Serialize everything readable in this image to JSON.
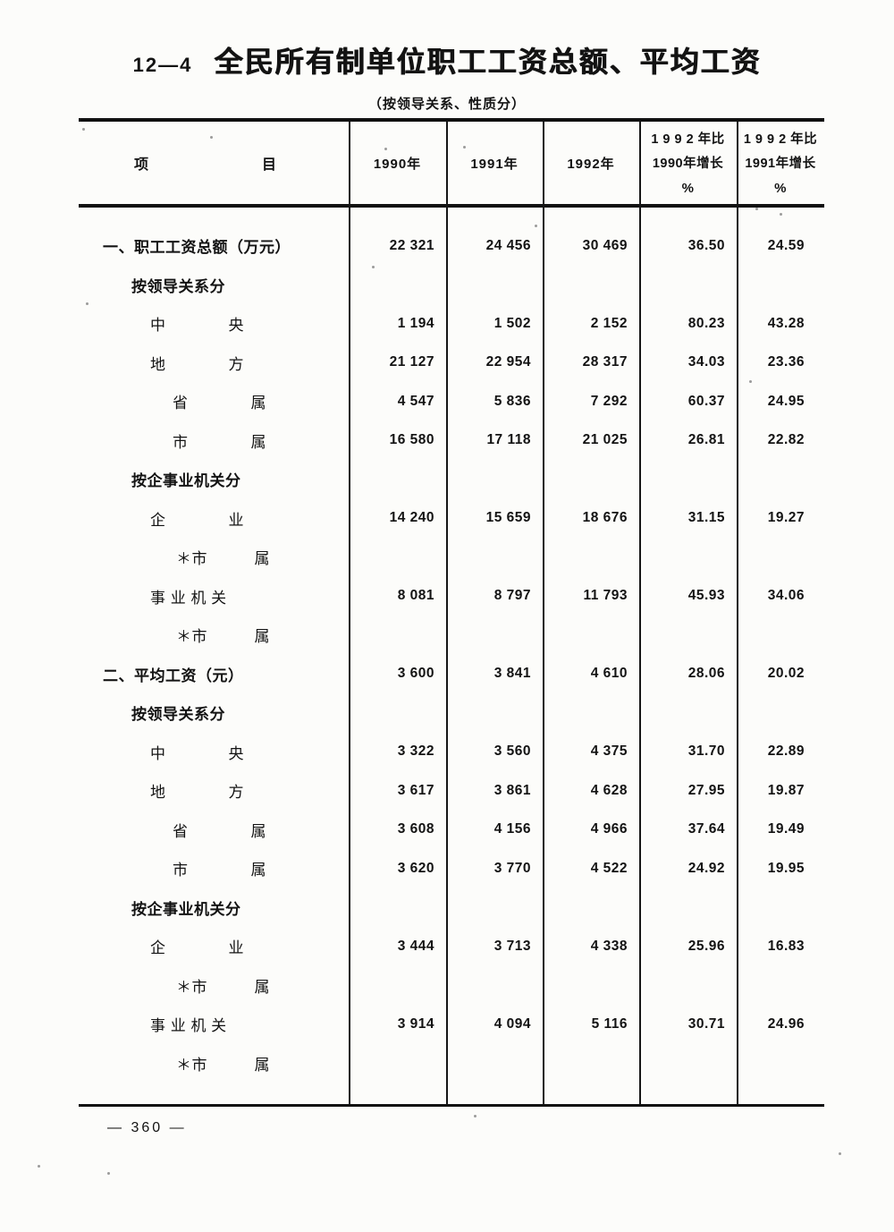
{
  "page": {
    "table_number": "12—4",
    "title": "全民所有制单位职工工资总额、平均工资",
    "subtitle": "（按领导关系、性质分）",
    "page_number": "— 360 —"
  },
  "table": {
    "header": {
      "item_left": "项",
      "item_right": "目",
      "year_cols": [
        "1990年",
        "1991年",
        "1992年"
      ],
      "growth_cols": [
        {
          "line1": "1 9 9 2 年比",
          "line2": "1990年增长",
          "line3": "%"
        },
        {
          "line1": "1 9 9 2 年比",
          "line2": "1991年增长",
          "line3": "%"
        }
      ]
    },
    "rows": [
      {
        "label": "一、职工工资总额（万元）",
        "indent": 1,
        "bold": true,
        "values": [
          "22 321",
          "24 456",
          "30 469",
          "36.50",
          "24.59"
        ]
      },
      {
        "label": "按领导关系分",
        "indent": 2,
        "bold": true,
        "values": [
          "",
          "",
          "",
          "",
          ""
        ]
      },
      {
        "label": "中　　　　央",
        "indent": 3,
        "bold": false,
        "values": [
          "1 194",
          "1 502",
          "2 152",
          "80.23",
          "43.28"
        ]
      },
      {
        "label": "地　　　　方",
        "indent": 3,
        "bold": false,
        "values": [
          "21 127",
          "22 954",
          "28 317",
          "34.03",
          "23.36"
        ]
      },
      {
        "label": "省　　　　属",
        "indent": 4,
        "bold": false,
        "values": [
          "4 547",
          "5 836",
          "7 292",
          "60.37",
          "24.95"
        ]
      },
      {
        "label": "市　　　　属",
        "indent": 4,
        "bold": false,
        "values": [
          "16 580",
          "17 118",
          "21 025",
          "26.81",
          "22.82"
        ]
      },
      {
        "label": "按企事业机关分",
        "indent": 2,
        "bold": true,
        "values": [
          "",
          "",
          "",
          "",
          ""
        ]
      },
      {
        "label": "企　　　　业",
        "indent": 3,
        "bold": false,
        "values": [
          "14 240",
          "15 659",
          "18 676",
          "31.15",
          "19.27"
        ]
      },
      {
        "label": "＊市　　　属",
        "indent": 5,
        "bold": false,
        "values": [
          "",
          "",
          "",
          "",
          ""
        ]
      },
      {
        "label": "事 业 机 关",
        "indent": 3,
        "bold": false,
        "values": [
          "8 081",
          "8 797",
          "11 793",
          "45.93",
          "34.06"
        ]
      },
      {
        "label": "＊市　　　属",
        "indent": 5,
        "bold": false,
        "values": [
          "",
          "",
          "",
          "",
          ""
        ]
      },
      {
        "label": "二、平均工资（元）",
        "indent": 1,
        "bold": true,
        "values": [
          "3 600",
          "3 841",
          "4 610",
          "28.06",
          "20.02"
        ]
      },
      {
        "label": "按领导关系分",
        "indent": 2,
        "bold": true,
        "values": [
          "",
          "",
          "",
          "",
          ""
        ]
      },
      {
        "label": "中　　　　央",
        "indent": 3,
        "bold": false,
        "values": [
          "3 322",
          "3 560",
          "4 375",
          "31.70",
          "22.89"
        ]
      },
      {
        "label": "地　　　　方",
        "indent": 3,
        "bold": false,
        "values": [
          "3 617",
          "3 861",
          "4 628",
          "27.95",
          "19.87"
        ]
      },
      {
        "label": "省　　　　属",
        "indent": 4,
        "bold": false,
        "values": [
          "3 608",
          "4 156",
          "4 966",
          "37.64",
          "19.49"
        ]
      },
      {
        "label": "市　　　　属",
        "indent": 4,
        "bold": false,
        "values": [
          "3 620",
          "3 770",
          "4 522",
          "24.92",
          "19.95"
        ]
      },
      {
        "label": "按企事业机关分",
        "indent": 2,
        "bold": true,
        "values": [
          "",
          "",
          "",
          "",
          ""
        ]
      },
      {
        "label": "企　　　　业",
        "indent": 3,
        "bold": false,
        "values": [
          "3 444",
          "3 713",
          "4 338",
          "25.96",
          "16.83"
        ]
      },
      {
        "label": "＊市　　　属",
        "indent": 5,
        "bold": false,
        "values": [
          "",
          "",
          "",
          "",
          ""
        ]
      },
      {
        "label": "事 业 机 关",
        "indent": 3,
        "bold": false,
        "values": [
          "3 914",
          "4 094",
          "5 116",
          "30.71",
          "24.96"
        ]
      },
      {
        "label": "＊市　　　属",
        "indent": 5,
        "bold": false,
        "values": [
          "",
          "",
          "",
          "",
          ""
        ]
      }
    ]
  }
}
